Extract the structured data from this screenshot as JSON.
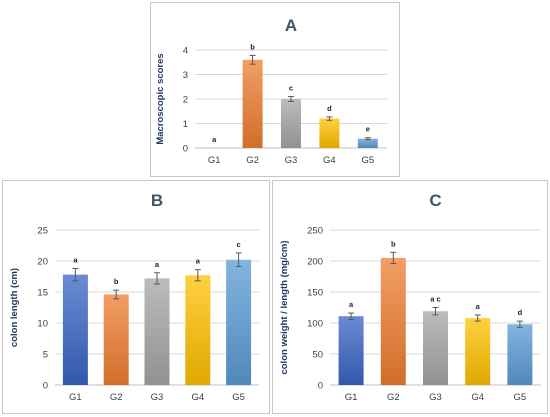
{
  "colors": {
    "G1": "#3a64c4",
    "G2": "#ed7d31",
    "G3": "#a5a5a5",
    "G4": "#ffc000",
    "G5": "#5b9bd5"
  },
  "chart_data": [
    {
      "id": "A",
      "type": "bar",
      "title": "A",
      "ylabel": "Macroscopic scores",
      "xlabel": "",
      "categories": [
        "G1",
        "G2",
        "G3",
        "G4",
        "G5"
      ],
      "values": [
        0,
        3.6,
        2.0,
        1.2,
        0.38
      ],
      "errors": [
        0,
        0.18,
        0.1,
        0.07,
        0.04
      ],
      "letters": [
        "a",
        "b",
        "c",
        "d",
        "e"
      ],
      "ylim": [
        0,
        4
      ],
      "yticks": [
        0,
        1,
        2,
        3,
        4
      ],
      "grid": true
    },
    {
      "id": "B",
      "type": "bar",
      "title": "B",
      "ylabel": "colon length (cm)",
      "xlabel": "",
      "categories": [
        "G1",
        "G2",
        "G3",
        "G4",
        "G5"
      ],
      "values": [
        17.8,
        14.6,
        17.2,
        17.7,
        20.2
      ],
      "errors": [
        1.0,
        0.7,
        0.9,
        0.9,
        1.1
      ],
      "letters": [
        "a",
        "b",
        "a",
        "a",
        "c"
      ],
      "ylim": [
        0,
        25
      ],
      "yticks": [
        0,
        5,
        10,
        15,
        20,
        25
      ],
      "grid": true
    },
    {
      "id": "C",
      "type": "bar",
      "title": "C",
      "ylabel": "colon weight / length (mg/cm)",
      "xlabel": "",
      "categories": [
        "G1",
        "G2",
        "G3",
        "G4",
        "G5"
      ],
      "values": [
        111,
        205,
        119,
        108,
        98
      ],
      "errors": [
        5,
        9,
        6,
        5,
        5
      ],
      "letters": [
        "a",
        "b",
        "a c",
        "a",
        "d"
      ],
      "ylim": [
        0,
        250
      ],
      "yticks": [
        0,
        50,
        100,
        150,
        200,
        250
      ],
      "grid": true
    }
  ]
}
